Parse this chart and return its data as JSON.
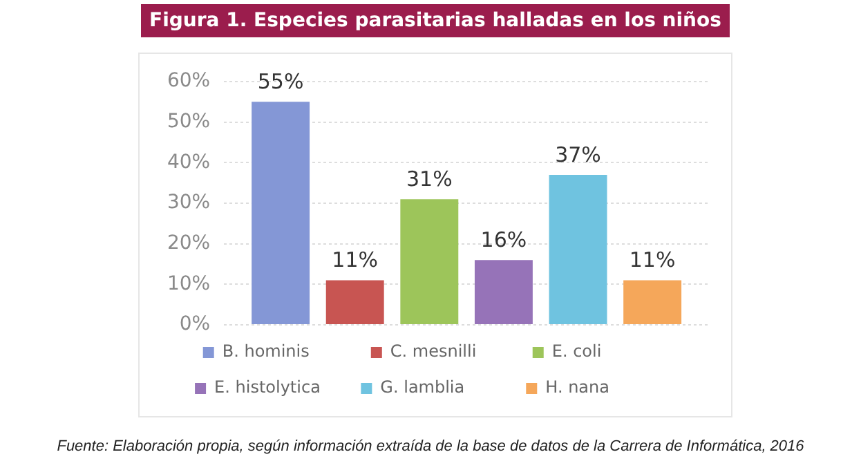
{
  "chart_data": {
    "type": "bar",
    "title": "Figura 1. Especies parasitarias halladas en los niños",
    "categories": [
      null
    ],
    "series": [
      {
        "name": "B. hominis",
        "color": "#8497d6",
        "values": [
          55
        ],
        "value_labels": [
          "55%"
        ]
      },
      {
        "name": "C. mesnilli",
        "color": "#c85552",
        "values": [
          11
        ],
        "value_labels": [
          "11%"
        ]
      },
      {
        "name": "E. coli",
        "color": "#9dc55a",
        "values": [
          31
        ],
        "value_labels": [
          "31%"
        ]
      },
      {
        "name": "E. histolytica",
        "color": "#9673b8",
        "values": [
          16
        ],
        "value_labels": [
          "16%"
        ]
      },
      {
        "name": "G. lamblia",
        "color": "#6fc3e0",
        "values": [
          37
        ],
        "value_labels": [
          "37%"
        ]
      },
      {
        "name": "H. nana",
        "color": "#f5a75a",
        "values": [
          11
        ],
        "value_labels": [
          "11%"
        ]
      }
    ],
    "ylim": [
      0,
      60
    ],
    "yticks": [
      {
        "value": 0,
        "label": "0%"
      },
      {
        "value": 10,
        "label": "10%"
      },
      {
        "value": 20,
        "label": "20%"
      },
      {
        "value": 30,
        "label": "30%"
      },
      {
        "value": 40,
        "label": "40%"
      },
      {
        "value": 50,
        "label": "50%"
      },
      {
        "value": 60,
        "label": "60%"
      }
    ],
    "grid": "y",
    "legend": "bottom",
    "tick_labels": "y",
    "annotations": [
      "Fuente: Elaboración propia, según información extraída de la base de datos de la Carrera de Informática, 2016"
    ]
  }
}
